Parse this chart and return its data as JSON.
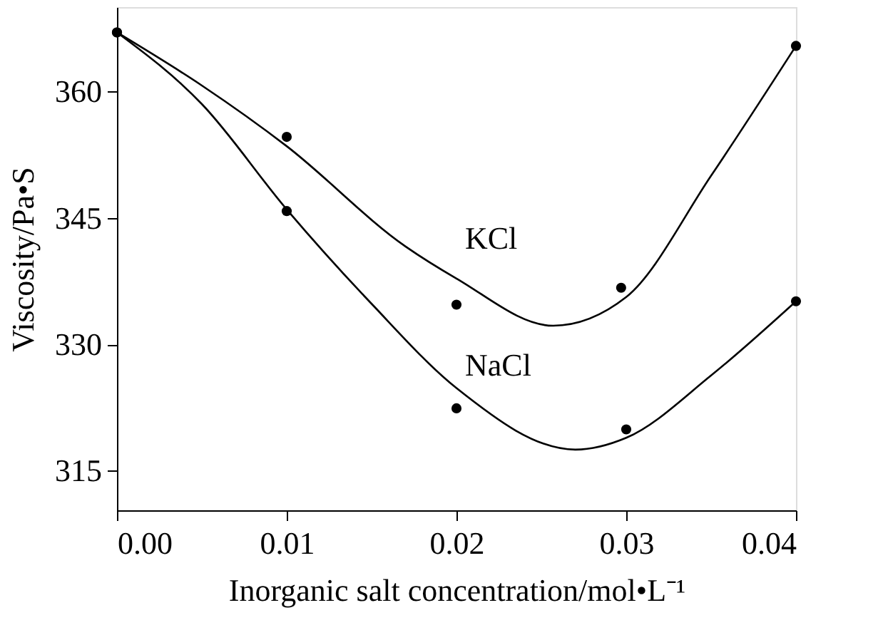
{
  "chart_data": {
    "type": "scatter",
    "xlabel": "Inorganic salt concentration/mol•L⁻¹",
    "ylabel": "Viscosity/Pa•S",
    "xlim": [
      0,
      0.04
    ],
    "xticks": [
      {
        "value": 0,
        "label": "0.00"
      },
      {
        "value": 0.01,
        "label": "0.01"
      },
      {
        "value": 0.02,
        "label": "0.02"
      },
      {
        "value": 0.03,
        "label": "0.03"
      },
      {
        "value": 0.04,
        "label": "0.04"
      }
    ],
    "ylim": [
      310.3,
      370
    ],
    "yticks": [
      315,
      330,
      345,
      360
    ],
    "grid": false,
    "marker": "circle",
    "series": [
      {
        "color": "#000000",
        "x": [
          0,
          0.01,
          0.02,
          0.0297,
          0.04
        ],
        "values": [
          367,
          354.6,
          334.7,
          336.7,
          365.4
        ]
      },
      {
        "color": "#000000",
        "x": [
          0,
          0.01,
          0.02,
          0.03,
          0.04
        ],
        "values": [
          367,
          345.8,
          322.4,
          319.9,
          335.1
        ]
      },
      {
        "type": "line",
        "name": "KCl",
        "color": "#000000",
        "marker": "none",
        "x": [
          0,
          0.005,
          0.01,
          0.017,
          0.02,
          0.0257,
          0.03,
          0.035,
          0.04
        ],
        "values": [
          367,
          360.7,
          353.5,
          341.6,
          337.8,
          332.2,
          335.6,
          350,
          365.4
        ]
      },
      {
        "type": "line",
        "name": "NaCl",
        "color": "#000000",
        "marker": "none",
        "x": [
          0,
          0.005,
          0.01,
          0.015,
          0.02,
          0.027,
          0.03,
          0.035,
          0.04
        ],
        "values": [
          367,
          358.5,
          346,
          334.8,
          324.8,
          317.5,
          318.9,
          326.3,
          335.1
        ]
      }
    ]
  }
}
